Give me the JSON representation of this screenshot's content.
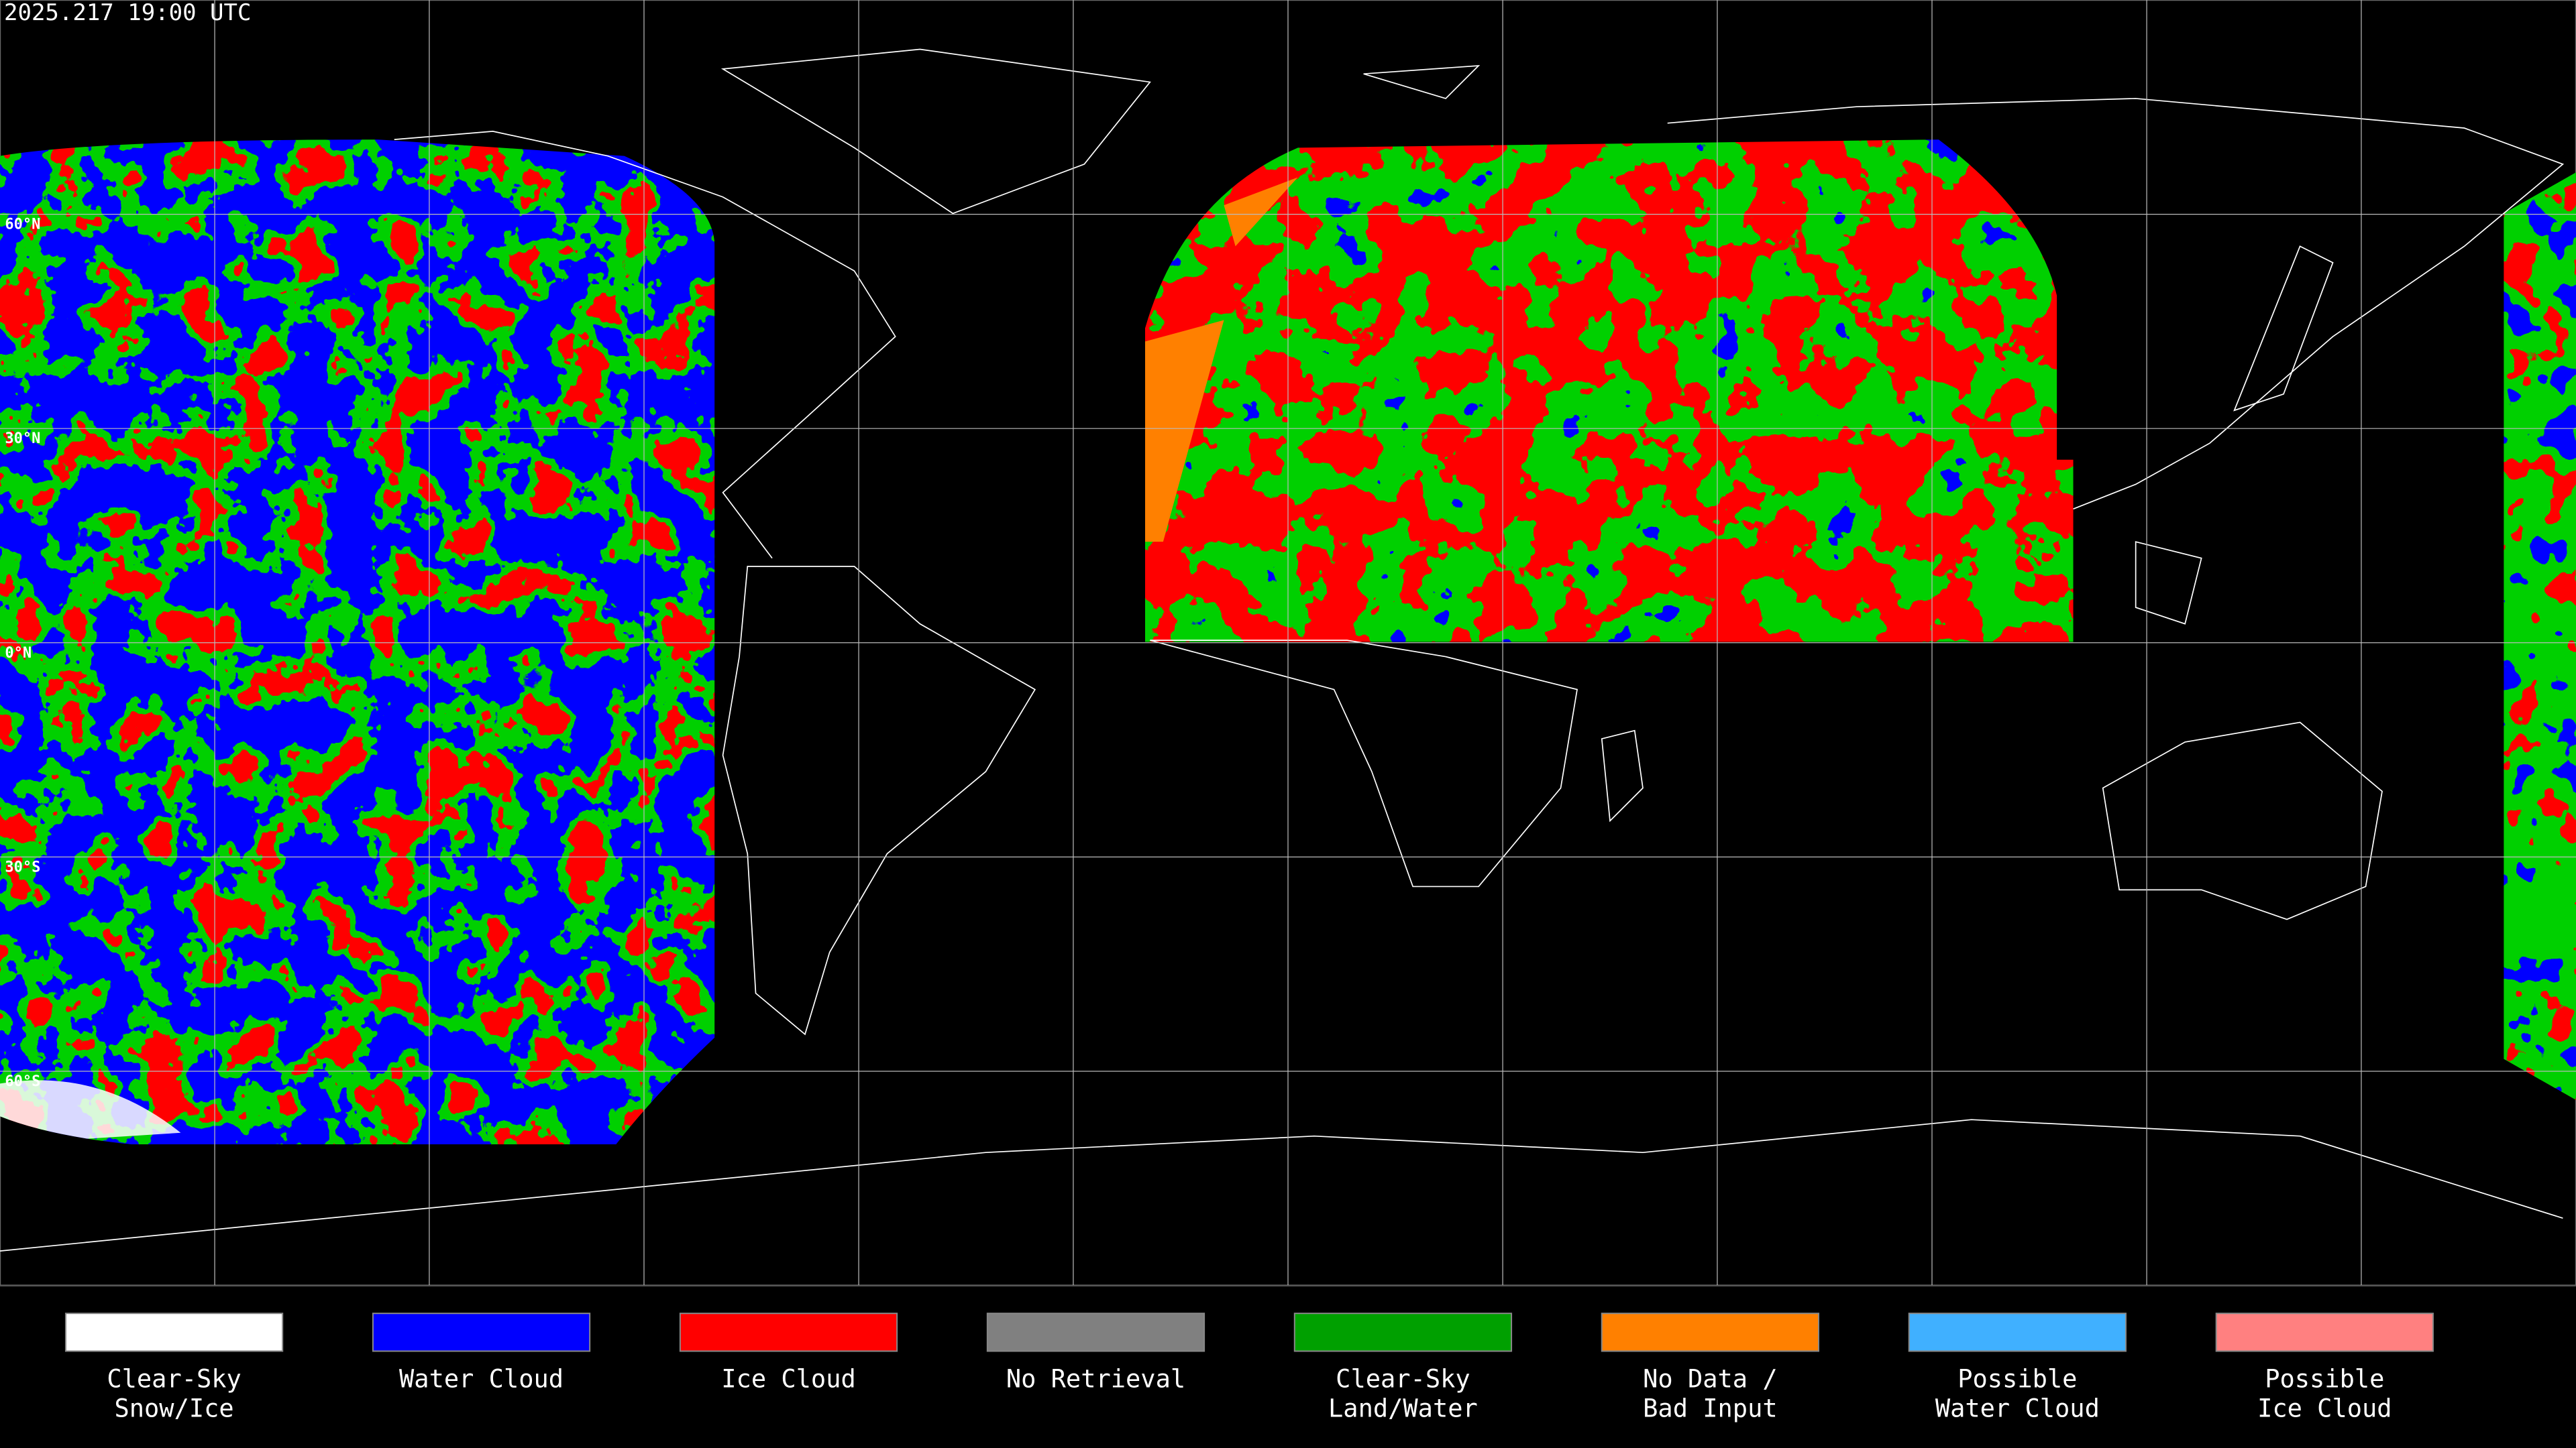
{
  "header": {
    "timestamp": "2025.217 19:00 UTC"
  },
  "map": {
    "latitude_labels": [
      "60°N",
      "30°N",
      "0°N",
      "30°S",
      "60°S"
    ]
  },
  "legend": {
    "items": [
      {
        "label_lines": [
          "Clear-Sky",
          "Snow/Ice"
        ],
        "color": "#ffffff"
      },
      {
        "label_lines": [
          "Water Cloud"
        ],
        "color": "#0000ff"
      },
      {
        "label_lines": [
          "Ice Cloud"
        ],
        "color": "#ff0000"
      },
      {
        "label_lines": [
          "No Retrieval"
        ],
        "color": "#808080"
      },
      {
        "label_lines": [
          "Clear-Sky",
          "Land/Water"
        ],
        "color": "#00a000"
      },
      {
        "label_lines": [
          "No Data /",
          "Bad Input"
        ],
        "color": "#ff8000"
      },
      {
        "label_lines": [
          "Possible",
          "Water Cloud"
        ],
        "color": "#40b0ff"
      },
      {
        "label_lines": [
          "Possible",
          "Ice Cloud"
        ],
        "color": "#ff8080"
      }
    ]
  }
}
